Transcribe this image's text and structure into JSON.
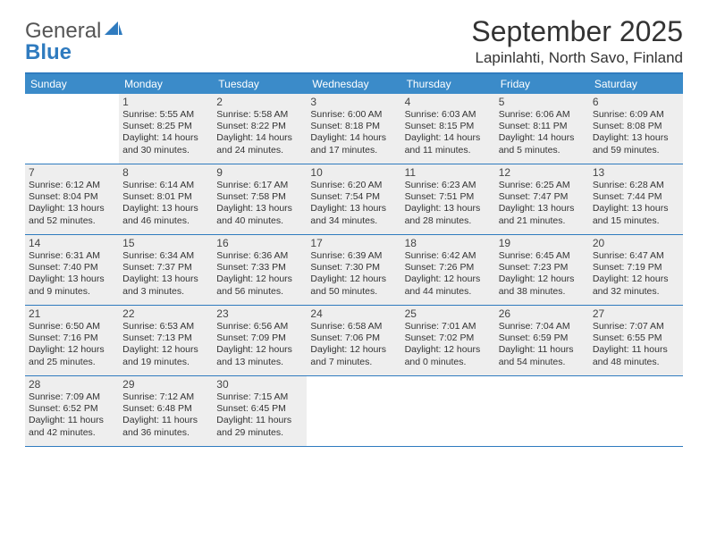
{
  "logo": {
    "text1": "General",
    "text2": "Blue"
  },
  "title": "September 2025",
  "location": "Lapinlahti, North Savo, Finland",
  "colors": {
    "header_bar": "#3b8bc9",
    "rule": "#2f7bbf",
    "cell_bg": "#eeeeee",
    "text": "#333333"
  },
  "daysOfWeek": [
    "Sunday",
    "Monday",
    "Tuesday",
    "Wednesday",
    "Thursday",
    "Friday",
    "Saturday"
  ],
  "weeks": [
    [
      {
        "empty": true
      },
      {
        "day": "1",
        "sunrise": "Sunrise: 5:55 AM",
        "sunset": "Sunset: 8:25 PM",
        "dl1": "Daylight: 14 hours",
        "dl2": "and 30 minutes."
      },
      {
        "day": "2",
        "sunrise": "Sunrise: 5:58 AM",
        "sunset": "Sunset: 8:22 PM",
        "dl1": "Daylight: 14 hours",
        "dl2": "and 24 minutes."
      },
      {
        "day": "3",
        "sunrise": "Sunrise: 6:00 AM",
        "sunset": "Sunset: 8:18 PM",
        "dl1": "Daylight: 14 hours",
        "dl2": "and 17 minutes."
      },
      {
        "day": "4",
        "sunrise": "Sunrise: 6:03 AM",
        "sunset": "Sunset: 8:15 PM",
        "dl1": "Daylight: 14 hours",
        "dl2": "and 11 minutes."
      },
      {
        "day": "5",
        "sunrise": "Sunrise: 6:06 AM",
        "sunset": "Sunset: 8:11 PM",
        "dl1": "Daylight: 14 hours",
        "dl2": "and 5 minutes."
      },
      {
        "day": "6",
        "sunrise": "Sunrise: 6:09 AM",
        "sunset": "Sunset: 8:08 PM",
        "dl1": "Daylight: 13 hours",
        "dl2": "and 59 minutes."
      }
    ],
    [
      {
        "day": "7",
        "sunrise": "Sunrise: 6:12 AM",
        "sunset": "Sunset: 8:04 PM",
        "dl1": "Daylight: 13 hours",
        "dl2": "and 52 minutes."
      },
      {
        "day": "8",
        "sunrise": "Sunrise: 6:14 AM",
        "sunset": "Sunset: 8:01 PM",
        "dl1": "Daylight: 13 hours",
        "dl2": "and 46 minutes."
      },
      {
        "day": "9",
        "sunrise": "Sunrise: 6:17 AM",
        "sunset": "Sunset: 7:58 PM",
        "dl1": "Daylight: 13 hours",
        "dl2": "and 40 minutes."
      },
      {
        "day": "10",
        "sunrise": "Sunrise: 6:20 AM",
        "sunset": "Sunset: 7:54 PM",
        "dl1": "Daylight: 13 hours",
        "dl2": "and 34 minutes."
      },
      {
        "day": "11",
        "sunrise": "Sunrise: 6:23 AM",
        "sunset": "Sunset: 7:51 PM",
        "dl1": "Daylight: 13 hours",
        "dl2": "and 28 minutes."
      },
      {
        "day": "12",
        "sunrise": "Sunrise: 6:25 AM",
        "sunset": "Sunset: 7:47 PM",
        "dl1": "Daylight: 13 hours",
        "dl2": "and 21 minutes."
      },
      {
        "day": "13",
        "sunrise": "Sunrise: 6:28 AM",
        "sunset": "Sunset: 7:44 PM",
        "dl1": "Daylight: 13 hours",
        "dl2": "and 15 minutes."
      }
    ],
    [
      {
        "day": "14",
        "sunrise": "Sunrise: 6:31 AM",
        "sunset": "Sunset: 7:40 PM",
        "dl1": "Daylight: 13 hours",
        "dl2": "and 9 minutes."
      },
      {
        "day": "15",
        "sunrise": "Sunrise: 6:34 AM",
        "sunset": "Sunset: 7:37 PM",
        "dl1": "Daylight: 13 hours",
        "dl2": "and 3 minutes."
      },
      {
        "day": "16",
        "sunrise": "Sunrise: 6:36 AM",
        "sunset": "Sunset: 7:33 PM",
        "dl1": "Daylight: 12 hours",
        "dl2": "and 56 minutes."
      },
      {
        "day": "17",
        "sunrise": "Sunrise: 6:39 AM",
        "sunset": "Sunset: 7:30 PM",
        "dl1": "Daylight: 12 hours",
        "dl2": "and 50 minutes."
      },
      {
        "day": "18",
        "sunrise": "Sunrise: 6:42 AM",
        "sunset": "Sunset: 7:26 PM",
        "dl1": "Daylight: 12 hours",
        "dl2": "and 44 minutes."
      },
      {
        "day": "19",
        "sunrise": "Sunrise: 6:45 AM",
        "sunset": "Sunset: 7:23 PM",
        "dl1": "Daylight: 12 hours",
        "dl2": "and 38 minutes."
      },
      {
        "day": "20",
        "sunrise": "Sunrise: 6:47 AM",
        "sunset": "Sunset: 7:19 PM",
        "dl1": "Daylight: 12 hours",
        "dl2": "and 32 minutes."
      }
    ],
    [
      {
        "day": "21",
        "sunrise": "Sunrise: 6:50 AM",
        "sunset": "Sunset: 7:16 PM",
        "dl1": "Daylight: 12 hours",
        "dl2": "and 25 minutes."
      },
      {
        "day": "22",
        "sunrise": "Sunrise: 6:53 AM",
        "sunset": "Sunset: 7:13 PM",
        "dl1": "Daylight: 12 hours",
        "dl2": "and 19 minutes."
      },
      {
        "day": "23",
        "sunrise": "Sunrise: 6:56 AM",
        "sunset": "Sunset: 7:09 PM",
        "dl1": "Daylight: 12 hours",
        "dl2": "and 13 minutes."
      },
      {
        "day": "24",
        "sunrise": "Sunrise: 6:58 AM",
        "sunset": "Sunset: 7:06 PM",
        "dl1": "Daylight: 12 hours",
        "dl2": "and 7 minutes."
      },
      {
        "day": "25",
        "sunrise": "Sunrise: 7:01 AM",
        "sunset": "Sunset: 7:02 PM",
        "dl1": "Daylight: 12 hours",
        "dl2": "and 0 minutes."
      },
      {
        "day": "26",
        "sunrise": "Sunrise: 7:04 AM",
        "sunset": "Sunset: 6:59 PM",
        "dl1": "Daylight: 11 hours",
        "dl2": "and 54 minutes."
      },
      {
        "day": "27",
        "sunrise": "Sunrise: 7:07 AM",
        "sunset": "Sunset: 6:55 PM",
        "dl1": "Daylight: 11 hours",
        "dl2": "and 48 minutes."
      }
    ],
    [
      {
        "day": "28",
        "sunrise": "Sunrise: 7:09 AM",
        "sunset": "Sunset: 6:52 PM",
        "dl1": "Daylight: 11 hours",
        "dl2": "and 42 minutes."
      },
      {
        "day": "29",
        "sunrise": "Sunrise: 7:12 AM",
        "sunset": "Sunset: 6:48 PM",
        "dl1": "Daylight: 11 hours",
        "dl2": "and 36 minutes."
      },
      {
        "day": "30",
        "sunrise": "Sunrise: 7:15 AM",
        "sunset": "Sunset: 6:45 PM",
        "dl1": "Daylight: 11 hours",
        "dl2": "and 29 minutes."
      },
      {
        "empty": true
      },
      {
        "empty": true
      },
      {
        "empty": true
      },
      {
        "empty": true
      }
    ]
  ]
}
